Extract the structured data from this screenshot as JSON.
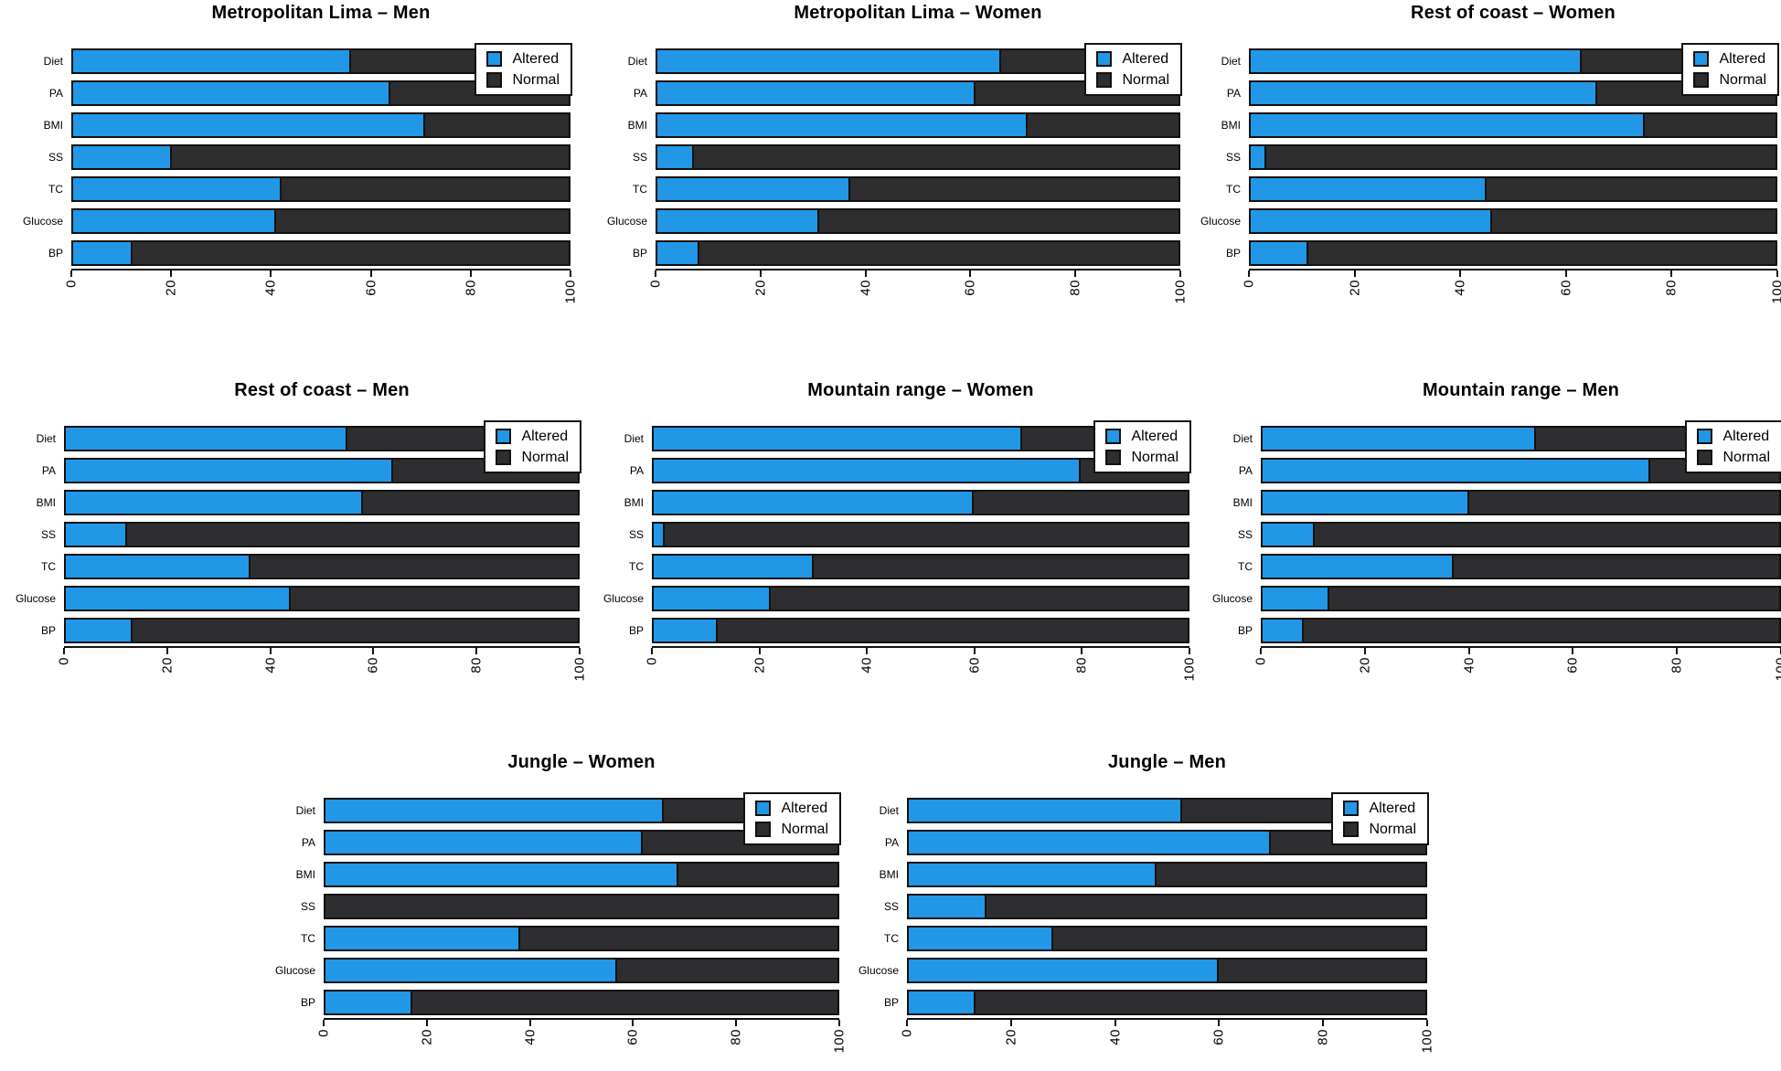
{
  "figure": {
    "description": "Eight horizontal stacked bar charts of altered vs normal cardiovascular risk factors by region and sex",
    "categories_note": "Rows top to bottom: Diet, PA, BMI, SS, TC, Glucose, BP"
  },
  "colors": {
    "altered": "#2297E6",
    "normal": "#2E2D2F",
    "bar_border": "#111111",
    "background": "#ffffff"
  },
  "legend": {
    "items": [
      {
        "label": "Altered",
        "color_key": "altered"
      },
      {
        "label": "Normal",
        "color_key": "normal"
      }
    ]
  },
  "axis": {
    "ticks": [
      0,
      20,
      40,
      60,
      80,
      100
    ],
    "xlim": [
      0,
      100
    ],
    "tick_labels_rotated": true
  },
  "chart_data": [
    {
      "type": "bar",
      "title": "Metropolitan Lima – Men",
      "categories": [
        "Diet",
        "PA",
        "BMI",
        "SS",
        "TC",
        "Glucose",
        "BP"
      ],
      "series": [
        {
          "name": "Altered",
          "values": [
            56,
            64,
            71,
            20,
            42,
            41,
            12
          ]
        },
        {
          "name": "Normal",
          "values": [
            44,
            36,
            29,
            80,
            58,
            59,
            88
          ]
        }
      ],
      "xlim": [
        0,
        100
      ],
      "legend_position": "top-right"
    },
    {
      "type": "bar",
      "title": "Metropolitan Lima – Women",
      "categories": [
        "Diet",
        "PA",
        "BMI",
        "SS",
        "TC",
        "Glucose",
        "BP"
      ],
      "series": [
        {
          "name": "Altered",
          "values": [
            66,
            61,
            71,
            7,
            37,
            31,
            8
          ]
        },
        {
          "name": "Normal",
          "values": [
            34,
            39,
            29,
            93,
            63,
            69,
            92
          ]
        }
      ],
      "xlim": [
        0,
        100
      ],
      "legend_position": "top-right"
    },
    {
      "type": "bar",
      "title": "Rest of coast – Women",
      "categories": [
        "Diet",
        "PA",
        "BMI",
        "SS",
        "TC",
        "Glucose",
        "BP"
      ],
      "series": [
        {
          "name": "Altered",
          "values": [
            63,
            66,
            75,
            3,
            45,
            46,
            11
          ]
        },
        {
          "name": "Normal",
          "values": [
            37,
            34,
            25,
            97,
            55,
            54,
            89
          ]
        }
      ],
      "xlim": [
        0,
        100
      ],
      "legend_position": "top-right"
    },
    {
      "type": "bar",
      "title": "Rest of coast – Men",
      "categories": [
        "Diet",
        "PA",
        "BMI",
        "SS",
        "TC",
        "Glucose",
        "BP"
      ],
      "series": [
        {
          "name": "Altered",
          "values": [
            55,
            64,
            58,
            12,
            36,
            44,
            13
          ]
        },
        {
          "name": "Normal",
          "values": [
            45,
            36,
            42,
            88,
            64,
            56,
            87
          ]
        }
      ],
      "xlim": [
        0,
        100
      ],
      "legend_position": "top-right"
    },
    {
      "type": "bar",
      "title": "Mountain range – Women",
      "categories": [
        "Diet",
        "PA",
        "BMI",
        "SS",
        "TC",
        "Glucose",
        "BP"
      ],
      "series": [
        {
          "name": "Altered",
          "values": [
            69,
            80,
            60,
            2,
            30,
            22,
            12
          ]
        },
        {
          "name": "Normal",
          "values": [
            31,
            20,
            40,
            98,
            70,
            78,
            88
          ]
        }
      ],
      "xlim": [
        0,
        100
      ],
      "legend_position": "top-right"
    },
    {
      "type": "bar",
      "title": "Mountain range – Men",
      "categories": [
        "Diet",
        "PA",
        "BMI",
        "SS",
        "TC",
        "Glucose",
        "BP"
      ],
      "series": [
        {
          "name": "Altered",
          "values": [
            53,
            75,
            40,
            10,
            37,
            13,
            8
          ]
        },
        {
          "name": "Normal",
          "values": [
            47,
            25,
            60,
            90,
            63,
            87,
            92
          ]
        }
      ],
      "xlim": [
        0,
        100
      ],
      "legend_position": "top-right"
    },
    {
      "type": "bar",
      "title": "Jungle – Women",
      "categories": [
        "Diet",
        "PA",
        "BMI",
        "SS",
        "TC",
        "Glucose",
        "BP"
      ],
      "series": [
        {
          "name": "Altered",
          "values": [
            66,
            62,
            69,
            0,
            38,
            57,
            17
          ]
        },
        {
          "name": "Normal",
          "values": [
            34,
            38,
            31,
            100,
            62,
            43,
            83
          ]
        }
      ],
      "xlim": [
        0,
        100
      ],
      "legend_position": "top-right"
    },
    {
      "type": "bar",
      "title": "Jungle – Men",
      "categories": [
        "Diet",
        "PA",
        "BMI",
        "SS",
        "TC",
        "Glucose",
        "BP"
      ],
      "series": [
        {
          "name": "Altered",
          "values": [
            53,
            70,
            48,
            15,
            28,
            60,
            13
          ]
        },
        {
          "name": "Normal",
          "values": [
            47,
            30,
            52,
            85,
            72,
            40,
            87
          ]
        }
      ],
      "xlim": [
        0,
        100
      ],
      "legend_position": "top-right"
    }
  ]
}
